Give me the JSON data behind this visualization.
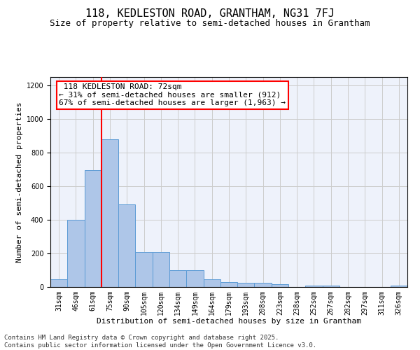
{
  "title": "118, KEDLESTON ROAD, GRANTHAM, NG31 7FJ",
  "subtitle": "Size of property relative to semi-detached houses in Grantham",
  "xlabel": "Distribution of semi-detached houses by size in Grantham",
  "ylabel": "Number of semi-detached properties",
  "categories": [
    "31sqm",
    "46sqm",
    "61sqm",
    "75sqm",
    "90sqm",
    "105sqm",
    "120sqm",
    "134sqm",
    "149sqm",
    "164sqm",
    "179sqm",
    "193sqm",
    "208sqm",
    "223sqm",
    "238sqm",
    "252sqm",
    "267sqm",
    "282sqm",
    "297sqm",
    "311sqm",
    "326sqm"
  ],
  "values": [
    45,
    400,
    695,
    880,
    490,
    210,
    210,
    100,
    100,
    45,
    30,
    25,
    25,
    15,
    0,
    10,
    10,
    0,
    0,
    0,
    10
  ],
  "bar_color": "#aec6e8",
  "bar_edge_color": "#5b9bd5",
  "property_label": "118 KEDLESTON ROAD: 72sqm",
  "pct_smaller": 31,
  "n_smaller": 912,
  "pct_larger": 67,
  "n_larger": 1963,
  "vline_color": "red",
  "ylim": [
    0,
    1250
  ],
  "yticks": [
    0,
    200,
    400,
    600,
    800,
    1000,
    1200
  ],
  "grid_color": "#cccccc",
  "bg_color": "#eef2fb",
  "footer": "Contains HM Land Registry data © Crown copyright and database right 2025.\nContains public sector information licensed under the Open Government Licence v3.0.",
  "title_fontsize": 11,
  "subtitle_fontsize": 9,
  "axis_label_fontsize": 8,
  "tick_fontsize": 7,
  "footer_fontsize": 6.5,
  "ann_fontsize": 8
}
